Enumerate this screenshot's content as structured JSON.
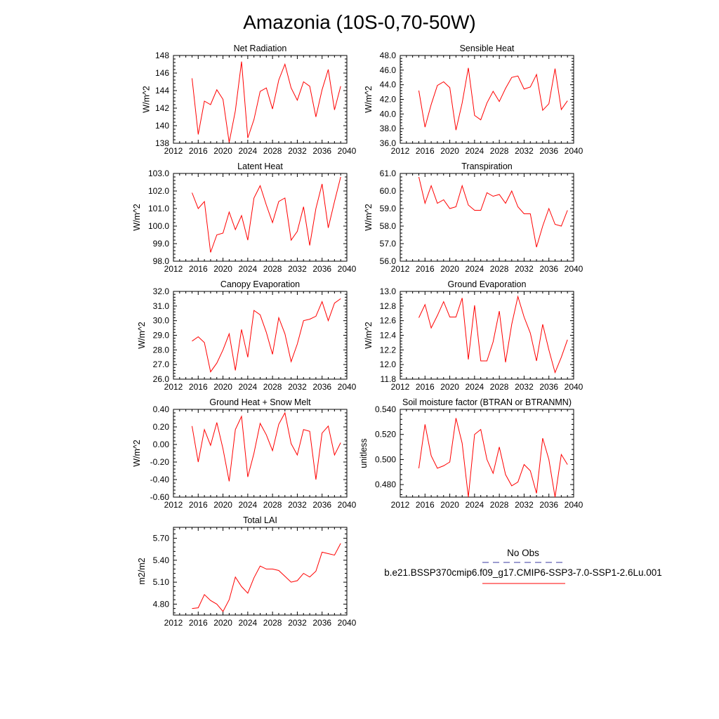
{
  "figure": {
    "title": "Amazonia (10S-0,70-50W)"
  },
  "legend": {
    "obs_label": "No Obs",
    "obs_color": "#3a3aa0",
    "case_label": "b.e21.BSSP370cmip6.f09_g17.CMIP6-SSP3-7.0-SSP1-2.6Lu.001",
    "case_color": "#ff0000"
  },
  "chart_data": [
    {
      "type": "line",
      "title": "Net Radiation",
      "ylabel": "W/m^2",
      "xlim": [
        2012,
        2040
      ],
      "xticks": [
        "2012",
        "2016",
        "2020",
        "2024",
        "2028",
        "2032",
        "2036",
        "2040"
      ],
      "ylim": [
        138,
        148
      ],
      "yticks": [
        "138",
        "140",
        "142",
        "144",
        "146",
        "148"
      ],
      "series": [
        {
          "color": "#ff0000",
          "x": [
            2015,
            2016,
            2017,
            2018,
            2019,
            2020,
            2021,
            2022,
            2023,
            2024,
            2025,
            2026,
            2027,
            2028,
            2029,
            2030,
            2031,
            2032,
            2033,
            2034,
            2035,
            2036,
            2037,
            2038,
            2039
          ],
          "y": [
            145.4,
            139.0,
            142.8,
            142.4,
            144.1,
            143.0,
            138.1,
            141.7,
            147.3,
            138.6,
            140.7,
            143.9,
            144.3,
            141.9,
            145.2,
            147.0,
            144.3,
            142.9,
            145.0,
            144.5,
            141.0,
            144.1,
            146.4,
            141.8,
            144.5
          ]
        }
      ]
    },
    {
      "type": "line",
      "title": "Sensible Heat",
      "ylabel": "W/m^2",
      "xlim": [
        2012,
        2040
      ],
      "xticks": [
        "2012",
        "2016",
        "2020",
        "2024",
        "2028",
        "2032",
        "2036",
        "2040"
      ],
      "ylim": [
        36,
        48
      ],
      "yticks": [
        "36.0",
        "38.0",
        "40.0",
        "42.0",
        "44.0",
        "46.0",
        "48.0"
      ],
      "series": [
        {
          "color": "#ff0000",
          "x": [
            2015,
            2016,
            2017,
            2018,
            2019,
            2020,
            2021,
            2022,
            2023,
            2024,
            2025,
            2026,
            2027,
            2028,
            2029,
            2030,
            2031,
            2032,
            2033,
            2034,
            2035,
            2036,
            2037,
            2038,
            2039
          ],
          "y": [
            43.2,
            38.2,
            41.3,
            43.9,
            44.4,
            43.6,
            37.8,
            41.5,
            46.3,
            39.8,
            39.2,
            41.5,
            43.1,
            41.7,
            43.5,
            45.0,
            45.2,
            43.4,
            43.7,
            45.4,
            40.5,
            41.4,
            46.2,
            40.6,
            41.8
          ]
        }
      ]
    },
    {
      "type": "line",
      "title": "Latent Heat",
      "ylabel": "W/m^2",
      "xlim": [
        2012,
        2040
      ],
      "xticks": [
        "2012",
        "2016",
        "2020",
        "2024",
        "2028",
        "2032",
        "2036",
        "2040"
      ],
      "ylim": [
        98,
        103
      ],
      "yticks": [
        "98.0",
        "99.0",
        "100.0",
        "101.0",
        "102.0",
        "103.0"
      ],
      "series": [
        {
          "color": "#ff0000",
          "x": [
            2015,
            2016,
            2017,
            2018,
            2019,
            2020,
            2021,
            2022,
            2023,
            2024,
            2025,
            2026,
            2027,
            2028,
            2029,
            2030,
            2031,
            2032,
            2033,
            2034,
            2035,
            2036,
            2037,
            2038,
            2039
          ],
          "y": [
            101.9,
            101.0,
            101.4,
            98.5,
            99.5,
            99.6,
            100.8,
            99.8,
            100.6,
            99.2,
            101.6,
            102.3,
            101.2,
            100.2,
            101.4,
            101.6,
            99.2,
            99.7,
            101.1,
            98.9,
            101.0,
            102.4,
            99.9,
            101.4,
            102.8
          ]
        }
      ]
    },
    {
      "type": "line",
      "title": "Transpiration",
      "ylabel": "W/m^2",
      "xlim": [
        2012,
        2040
      ],
      "xticks": [
        "2012",
        "2016",
        "2020",
        "2024",
        "2028",
        "2032",
        "2036",
        "2040"
      ],
      "ylim": [
        56,
        61
      ],
      "yticks": [
        "56.0",
        "57.0",
        "58.0",
        "59.0",
        "60.0",
        "61.0"
      ],
      "series": [
        {
          "color": "#ff0000",
          "x": [
            2015,
            2016,
            2017,
            2018,
            2019,
            2020,
            2021,
            2022,
            2023,
            2024,
            2025,
            2026,
            2027,
            2028,
            2029,
            2030,
            2031,
            2032,
            2033,
            2034,
            2035,
            2036,
            2037,
            2038,
            2039
          ],
          "y": [
            60.8,
            59.3,
            60.3,
            59.3,
            59.5,
            59.0,
            59.1,
            60.3,
            59.2,
            58.9,
            58.9,
            59.9,
            59.7,
            59.8,
            59.3,
            60.0,
            59.1,
            58.7,
            58.7,
            56.8,
            58.0,
            59.0,
            58.1,
            58.0,
            58.9
          ]
        }
      ]
    },
    {
      "type": "line",
      "title": "Canopy Evaporation",
      "ylabel": "W/m^2",
      "xlim": [
        2012,
        2040
      ],
      "xticks": [
        "2012",
        "2016",
        "2020",
        "2024",
        "2028",
        "2032",
        "2036",
        "2040"
      ],
      "ylim": [
        26,
        32
      ],
      "yticks": [
        "26.0",
        "27.0",
        "28.0",
        "29.0",
        "30.0",
        "31.0",
        "32.0"
      ],
      "series": [
        {
          "color": "#ff0000",
          "x": [
            2015,
            2016,
            2017,
            2018,
            2019,
            2020,
            2021,
            2022,
            2023,
            2024,
            2025,
            2026,
            2027,
            2028,
            2029,
            2030,
            2031,
            2032,
            2033,
            2034,
            2035,
            2036,
            2037,
            2038,
            2039
          ],
          "y": [
            28.6,
            28.9,
            28.5,
            26.5,
            27.1,
            28.0,
            29.1,
            26.6,
            29.4,
            27.5,
            30.7,
            30.4,
            29.2,
            27.7,
            30.2,
            29.1,
            27.2,
            28.4,
            30.0,
            30.1,
            30.3,
            31.3,
            30.0,
            31.2,
            31.5
          ]
        }
      ]
    },
    {
      "type": "line",
      "title": "Ground Evaporation",
      "ylabel": "W/m^2",
      "xlim": [
        2012,
        2040
      ],
      "xticks": [
        "2012",
        "2016",
        "2020",
        "2024",
        "2028",
        "2032",
        "2036",
        "2040"
      ],
      "ylim": [
        11.8,
        13.0
      ],
      "yticks": [
        "11.8",
        "12.0",
        "12.2",
        "12.4",
        "12.6",
        "12.8",
        "13.0"
      ],
      "series": [
        {
          "color": "#ff0000",
          "x": [
            2015,
            2016,
            2017,
            2018,
            2019,
            2020,
            2021,
            2022,
            2023,
            2024,
            2025,
            2026,
            2027,
            2028,
            2029,
            2030,
            2031,
            2032,
            2033,
            2034,
            2035,
            2036,
            2037,
            2038,
            2039
          ],
          "y": [
            12.64,
            12.82,
            12.5,
            12.67,
            12.86,
            12.65,
            12.65,
            12.91,
            12.07,
            12.81,
            12.05,
            12.05,
            12.31,
            12.73,
            12.03,
            12.55,
            12.93,
            12.65,
            12.43,
            12.05,
            12.55,
            12.2,
            11.89,
            12.1,
            12.34
          ]
        }
      ]
    },
    {
      "type": "line",
      "title": "Ground Heat + Snow Melt",
      "ylabel": "W/m^2",
      "xlim": [
        2012,
        2040
      ],
      "xticks": [
        "2012",
        "2016",
        "2020",
        "2024",
        "2028",
        "2032",
        "2036",
        "2040"
      ],
      "ylim": [
        -0.6,
        0.4
      ],
      "yticks": [
        "-0.60",
        "-0.40",
        "-0.20",
        "0.00",
        "0.20",
        "0.40"
      ],
      "series": [
        {
          "color": "#ff0000",
          "x": [
            2015,
            2016,
            2017,
            2018,
            2019,
            2020,
            2021,
            2022,
            2023,
            2024,
            2025,
            2026,
            2027,
            2028,
            2029,
            2030,
            2031,
            2032,
            2033,
            2034,
            2035,
            2036,
            2037,
            2038,
            2039
          ],
          "y": [
            0.21,
            -0.2,
            0.17,
            -0.01,
            0.25,
            -0.05,
            -0.42,
            0.17,
            0.32,
            -0.37,
            -0.1,
            0.24,
            0.11,
            -0.07,
            0.23,
            0.36,
            0.01,
            -0.12,
            0.17,
            0.15,
            -0.4,
            0.13,
            0.21,
            -0.12,
            0.02
          ]
        }
      ]
    },
    {
      "type": "line",
      "title": "Soil moisture factor (BTRAN or BTRANMN)",
      "ylabel": "unitless",
      "xlim": [
        2012,
        2040
      ],
      "xticks": [
        "2012",
        "2016",
        "2020",
        "2024",
        "2028",
        "2032",
        "2036",
        "2040"
      ],
      "ylim": [
        0.47,
        0.54
      ],
      "yticks": [
        "0.480",
        "0.500",
        "0.520",
        "0.540"
      ],
      "series": [
        {
          "color": "#ff0000",
          "x": [
            2015,
            2016,
            2017,
            2018,
            2019,
            2020,
            2021,
            2022,
            2023,
            2024,
            2025,
            2026,
            2027,
            2028,
            2029,
            2030,
            2031,
            2032,
            2033,
            2034,
            2035,
            2036,
            2037,
            2038,
            2039
          ],
          "y": [
            0.493,
            0.528,
            0.503,
            0.493,
            0.495,
            0.498,
            0.533,
            0.513,
            0.47,
            0.52,
            0.524,
            0.5,
            0.489,
            0.51,
            0.488,
            0.479,
            0.482,
            0.496,
            0.491,
            0.473,
            0.517,
            0.5,
            0.47,
            0.504,
            0.496
          ]
        }
      ]
    },
    {
      "type": "line",
      "title": "Total LAI",
      "ylabel": "m2/m2",
      "xlim": [
        2012,
        2040
      ],
      "xticks": [
        "2012",
        "2016",
        "2020",
        "2024",
        "2028",
        "2032",
        "2036",
        "2040"
      ],
      "ylim": [
        4.65,
        5.85
      ],
      "yticks": [
        "4.80",
        "5.10",
        "5.40",
        "5.70"
      ],
      "series": [
        {
          "color": "#ff0000",
          "x": [
            2015,
            2016,
            2017,
            2018,
            2019,
            2020,
            2021,
            2022,
            2023,
            2024,
            2025,
            2026,
            2027,
            2028,
            2029,
            2030,
            2031,
            2032,
            2033,
            2034,
            2035,
            2036,
            2037,
            2038,
            2039
          ],
          "y": [
            4.74,
            4.75,
            4.93,
            4.85,
            4.8,
            4.7,
            4.86,
            5.17,
            5.04,
            4.95,
            5.16,
            5.32,
            5.28,
            5.28,
            5.26,
            5.18,
            5.1,
            5.12,
            5.22,
            5.17,
            5.25,
            5.51,
            5.49,
            5.47,
            5.63
          ]
        }
      ]
    }
  ]
}
